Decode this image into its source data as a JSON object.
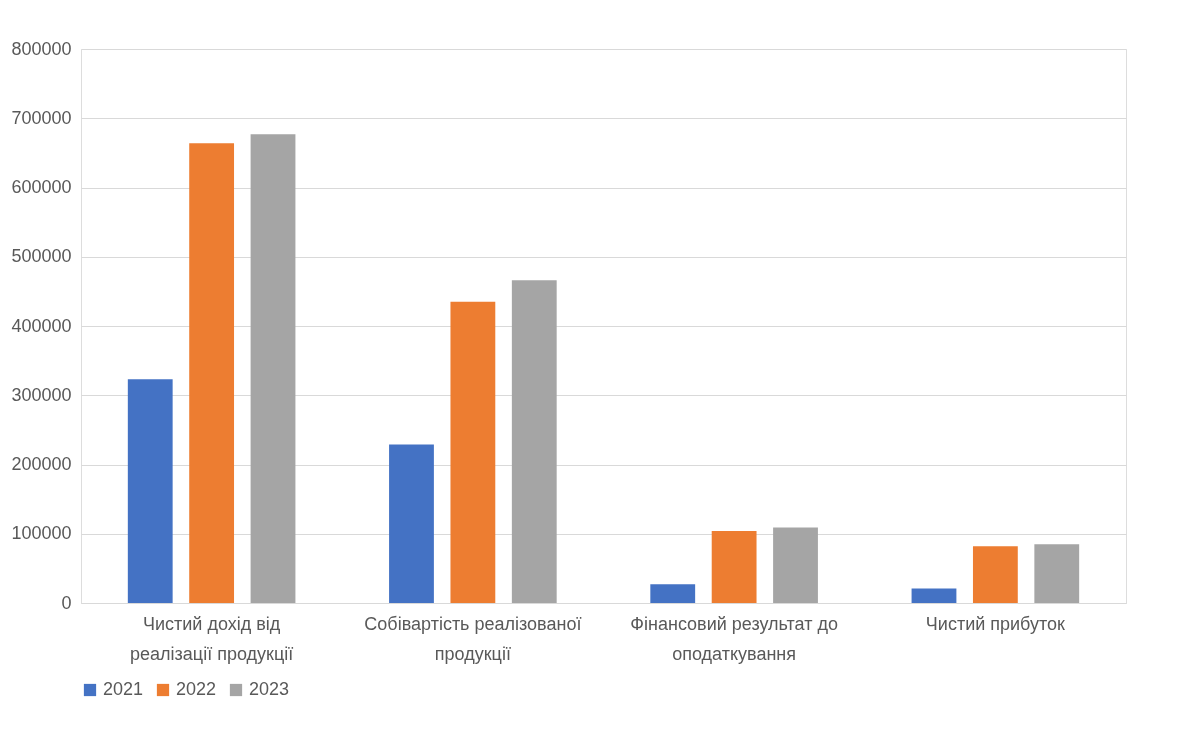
{
  "chart_data": {
    "type": "bar",
    "categories": [
      "Чистий дохід від реалізації продукції",
      "Собівартість реалізованої продукції",
      "Фінансовий результат до оподаткування",
      "Чистий прибуток"
    ],
    "series": [
      {
        "name": "2021",
        "color": "#4472c4",
        "values": [
          323000,
          229000,
          27000,
          21000
        ]
      },
      {
        "name": "2022",
        "color": "#ed7d31",
        "values": [
          664000,
          435000,
          104000,
          82000
        ]
      },
      {
        "name": "2023",
        "color": "#a5a5a5",
        "values": [
          677000,
          466000,
          109000,
          85000
        ]
      }
    ],
    "ylim": [
      0,
      800000
    ],
    "yticks": [
      0,
      100000,
      200000,
      300000,
      400000,
      500000,
      600000,
      700000,
      800000
    ],
    "grid": "y",
    "legend": "bottom"
  }
}
